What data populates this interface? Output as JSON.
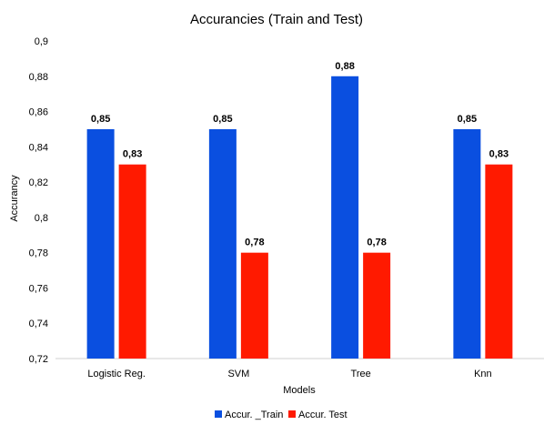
{
  "chart_data": {
    "type": "bar",
    "title": "Accurancies (Train and Test)",
    "xlabel": "Models",
    "ylabel": "Accurancy",
    "categories": [
      "Logistic Reg.",
      "SVM",
      "Tree",
      "Knn"
    ],
    "series": [
      {
        "name": "Accur. _Train",
        "color": "#0a4fe0",
        "values": [
          0.85,
          0.85,
          0.88,
          0.85
        ],
        "labels": [
          "0,85",
          "0,85",
          "0,88",
          "0,85"
        ]
      },
      {
        "name": "Accur. Test",
        "color": "#ff1a00",
        "values": [
          0.83,
          0.78,
          0.78,
          0.83
        ],
        "labels": [
          "0,83",
          "0,78",
          "0,78",
          "0,83"
        ]
      }
    ],
    "ylim": [
      0.72,
      0.9
    ],
    "yticks": [
      0.72,
      0.74,
      0.76,
      0.78,
      0.8,
      0.82,
      0.84,
      0.86,
      0.88,
      0.9
    ],
    "ytick_labels": [
      "0,72",
      "0,74",
      "0,76",
      "0,78",
      "0,8",
      "0,82",
      "0,84",
      "0,86",
      "0,88",
      "0,9"
    ],
    "grid": false,
    "legend": "bottom-center"
  }
}
